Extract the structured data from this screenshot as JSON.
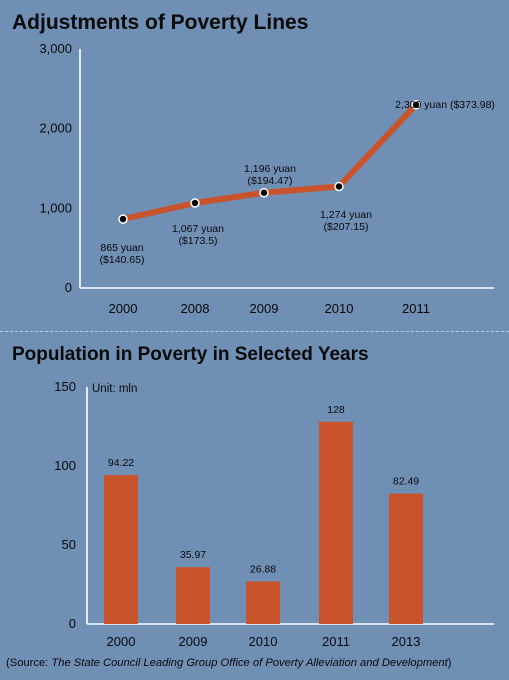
{
  "chart_data": [
    {
      "type": "line",
      "title": "Adjustments of Poverty Lines",
      "categories": [
        "2000",
        "2008",
        "2009",
        "2010",
        "2011"
      ],
      "values": [
        865,
        1067,
        1196,
        1274,
        2300
      ],
      "data_labels": [
        [
          "865 yuan",
          "($140.65)"
        ],
        [
          "1,067 yuan",
          "($173.5)"
        ],
        [
          "1,196 yuan",
          "($194.47)"
        ],
        [
          "1,274 yuan",
          "($207.15)"
        ],
        [
          "2,300 yuan ($373.98)"
        ]
      ],
      "yticks": [
        "0",
        "1,000",
        "2,000",
        "3,000"
      ],
      "ylim": [
        0,
        3000
      ],
      "line_color": "#c9532a",
      "marker_color": "#000000",
      "marker_edge": "#ffffff",
      "grid": false
    },
    {
      "type": "bar",
      "title": "Population in Poverty in Selected Years",
      "unit_label": "Unit: mln",
      "categories": [
        "2000",
        "2009",
        "2010",
        "2011",
        "2013"
      ],
      "values": [
        94.22,
        35.97,
        26.88,
        128,
        82.49
      ],
      "data_labels": [
        "94.22",
        "35.97",
        "26.88",
        "128",
        "82.49"
      ],
      "yticks": [
        "0",
        "50",
        "100",
        "150"
      ],
      "ylim": [
        0,
        150
      ],
      "bar_color": "#c9532a",
      "grid": false
    }
  ],
  "source": {
    "prefix": "(Source: ",
    "italic": "The State Council Leading Group Office of Poverty Alleviation and Development",
    "suffix": ")"
  },
  "colors": {
    "background": "#6f8fb4",
    "axis": "#ffffff",
    "text": "#0a0a0a"
  }
}
